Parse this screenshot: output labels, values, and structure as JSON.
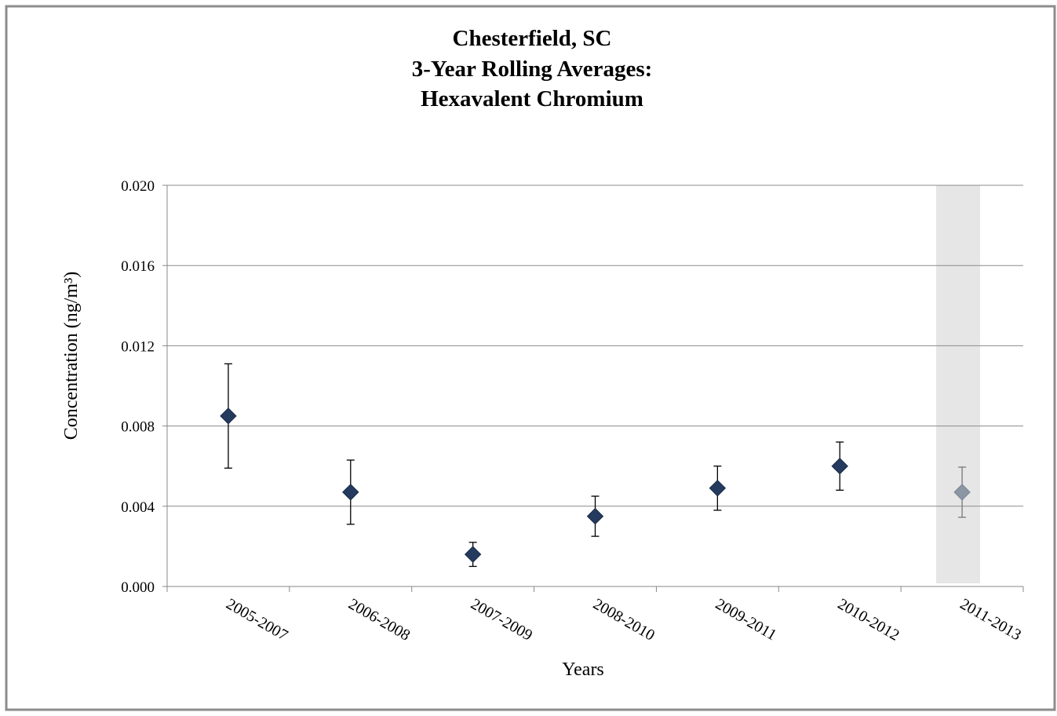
{
  "chart_data": {
    "type": "errorbar",
    "title": [
      "Chesterfield, SC",
      "3-Year Rolling Averages:",
      "Hexavalent Chromium"
    ],
    "x_label": "Years",
    "y_label": "Concentration (ng/m³)",
    "categories": [
      "2005-2007",
      "2006-2008",
      "2007-2009",
      "2008-2010",
      "2009-2011",
      "2010-2012",
      "2011-2013"
    ],
    "values": [
      0.0085,
      0.0047,
      0.0016,
      0.0035,
      0.0049,
      0.006,
      0.0047
    ],
    "errors": [
      0.0026,
      0.0016,
      0.0006,
      0.001,
      0.0011,
      0.0012,
      0.00125
    ],
    "colors": [
      "#243a5e",
      "#243a5e",
      "#243a5e",
      "#243a5e",
      "#243a5e",
      "#243a5e",
      "#8b96a5"
    ],
    "ylim": [
      0,
      0.02
    ],
    "yticks": [
      {
        "value": 0,
        "label": "0.000"
      },
      {
        "value": 0.004,
        "label": "0.004"
      },
      {
        "value": 0.008,
        "label": "0.008"
      },
      {
        "value": 0.012,
        "label": "0.012"
      },
      {
        "value": 0.016,
        "label": "0.016"
      },
      {
        "value": 0.02,
        "label": "0.020"
      }
    ],
    "grid": true
  }
}
